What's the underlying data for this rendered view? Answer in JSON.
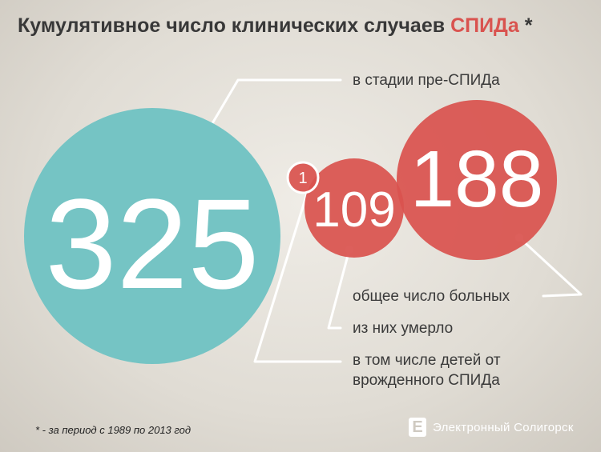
{
  "title": {
    "text": "Кумулятивное число клинических случаев ",
    "accent": "СПИДа",
    "mark": " *"
  },
  "chart_data": {
    "type": "bubble",
    "values": [
      {
        "label": "в стадии пре-СПИДа",
        "value": 325,
        "color": "#75c4c4"
      },
      {
        "label": "общее число больных",
        "value": 188,
        "color": "#d9534f"
      },
      {
        "label": "из них умерло",
        "value": 109,
        "color": "#d9534f"
      },
      {
        "label": "в том числе детей от врожденного СПИДа",
        "value": 1,
        "color": "#d9534f"
      }
    ]
  },
  "labels": {
    "pre_aids": "в стадии пре-СПИДа",
    "total": "общее число больных",
    "died": "из них умерло",
    "children_line1": "в том числе детей от",
    "children_line2": "врожденного СПИДа"
  },
  "footnote": "* - за период с 1989 по 2013 год",
  "logo": {
    "letter": "Е",
    "text": "Электронный Солигорск"
  },
  "colors": {
    "teal": "#75c4c4",
    "red": "#d9534f",
    "text": "#3a3a3a"
  }
}
